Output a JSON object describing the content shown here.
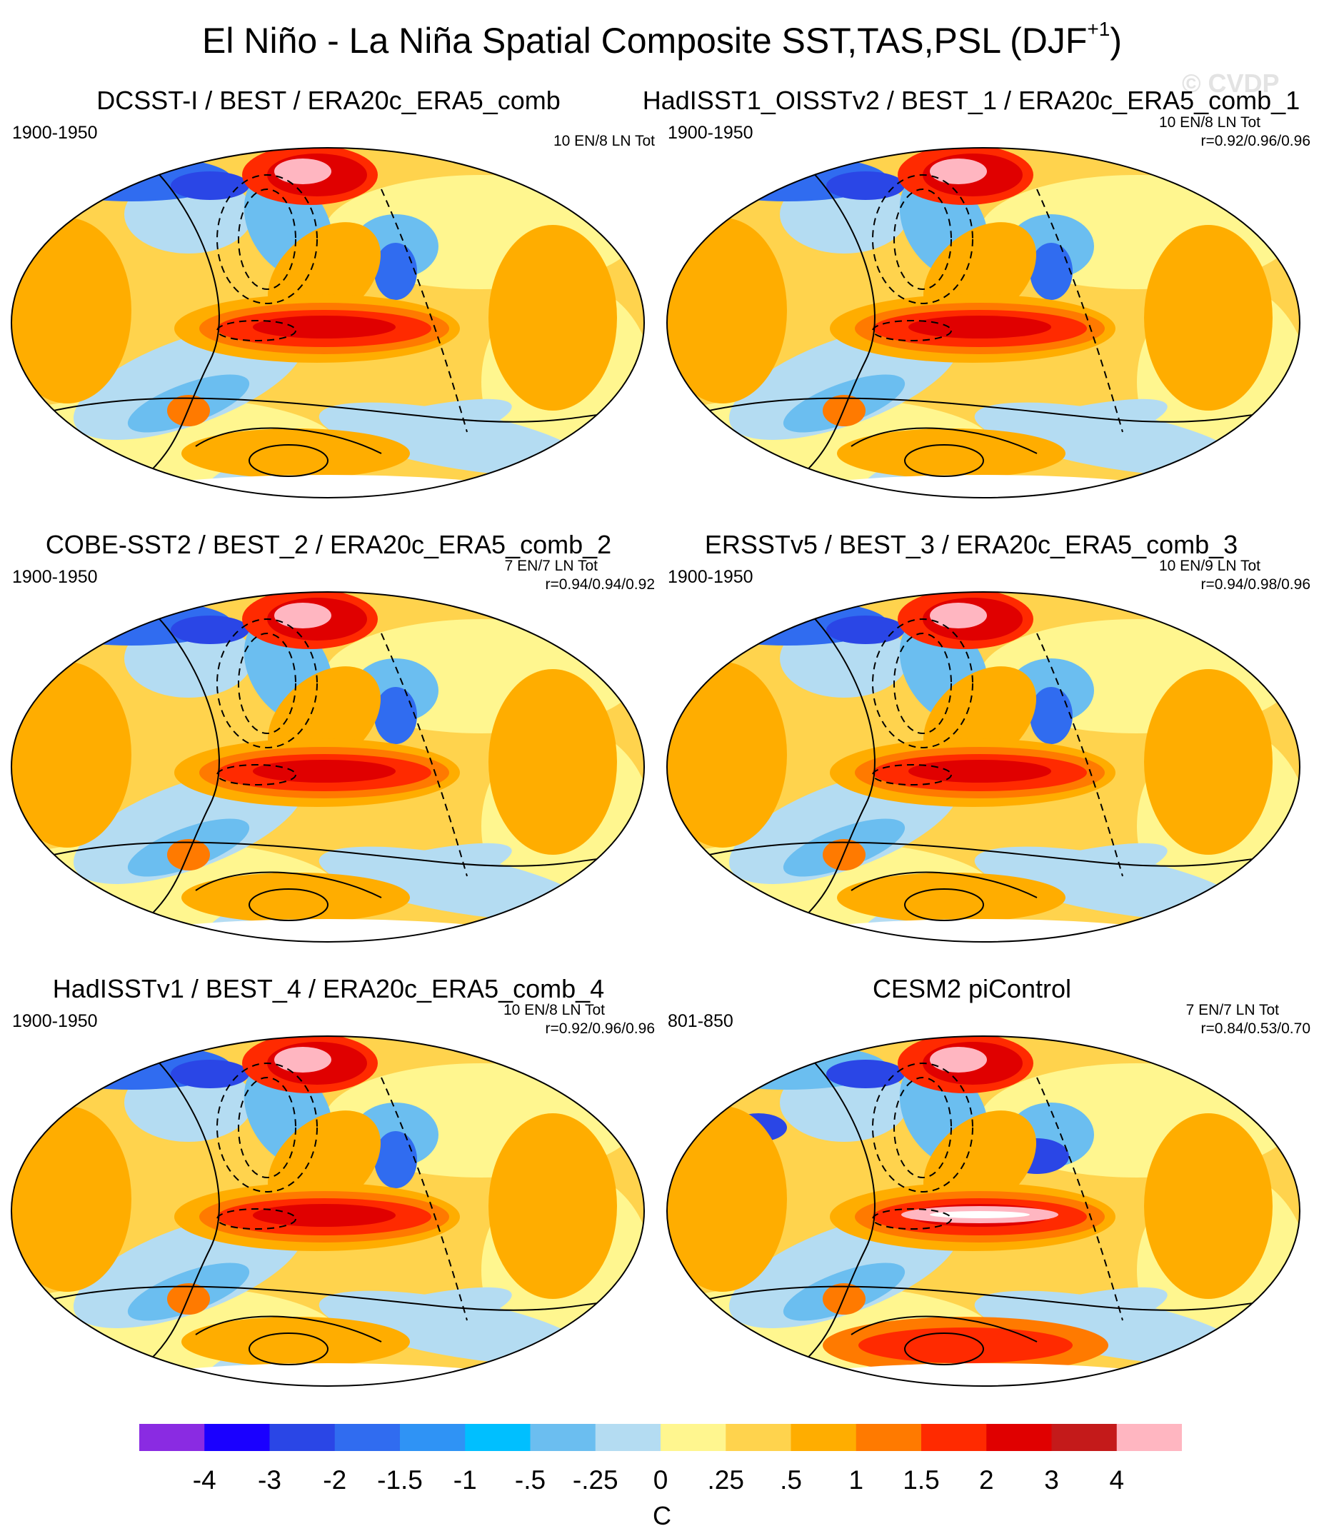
{
  "figure": {
    "title": "El Niño - La Niña Spatial Composite SST,TAS,PSL (DJF",
    "title_superscript": "+1",
    "title_close": ")",
    "watermark": "© CVDP"
  },
  "panels": [
    {
      "title": "DCSST-I / BEST / ERA20c_ERA5_comb",
      "period": "1900-1950",
      "events": "10 EN/8 LN Tot",
      "corr": ""
    },
    {
      "title": "HadISST1_OISSTv2 / BEST_1 / ERA20c_ERA5_comb_1",
      "period": "1900-1950",
      "events": "10 EN/8 LN Tot",
      "corr": "r=0.92/0.96/0.96"
    },
    {
      "title": "COBE-SST2 / BEST_2 / ERA20c_ERA5_comb_2",
      "period": "1900-1950",
      "events": "7 EN/7 LN Tot",
      "corr": "r=0.94/0.94/0.92"
    },
    {
      "title": "ERSSTv5 / BEST_3 / ERA20c_ERA5_comb_3",
      "period": "1900-1950",
      "events": "10 EN/9 LN Tot",
      "corr": "r=0.94/0.98/0.96"
    },
    {
      "title": "HadISSTv1 / BEST_4 / ERA20c_ERA5_comb_4",
      "period": "1900-1950",
      "events": "10 EN/8 LN Tot",
      "corr": "r=0.92/0.96/0.96"
    },
    {
      "title": "CESM2 piControl",
      "period": "801-850",
      "events": "7 EN/7 LN Tot",
      "corr": "r=0.84/0.53/0.70"
    }
  ],
  "colorbar": {
    "units": "C",
    "labels": [
      "-4",
      "-3",
      "-2",
      "-1.5",
      "-1",
      "-.5",
      "-.25",
      "0",
      ".25",
      ".5",
      "1",
      "1.5",
      "2",
      "3",
      "4"
    ],
    "colors": [
      "#8a2be2",
      "#1a00ff",
      "#2a46e6",
      "#306cf0",
      "#2f93f5",
      "#00bfff",
      "#6bbef0",
      "#b4dcf2",
      "#fff68f",
      "#ffd34d",
      "#ffad00",
      "#ff7a00",
      "#ff2a00",
      "#e00000",
      "#c41a1a",
      "#ffb6c1"
    ]
  }
}
